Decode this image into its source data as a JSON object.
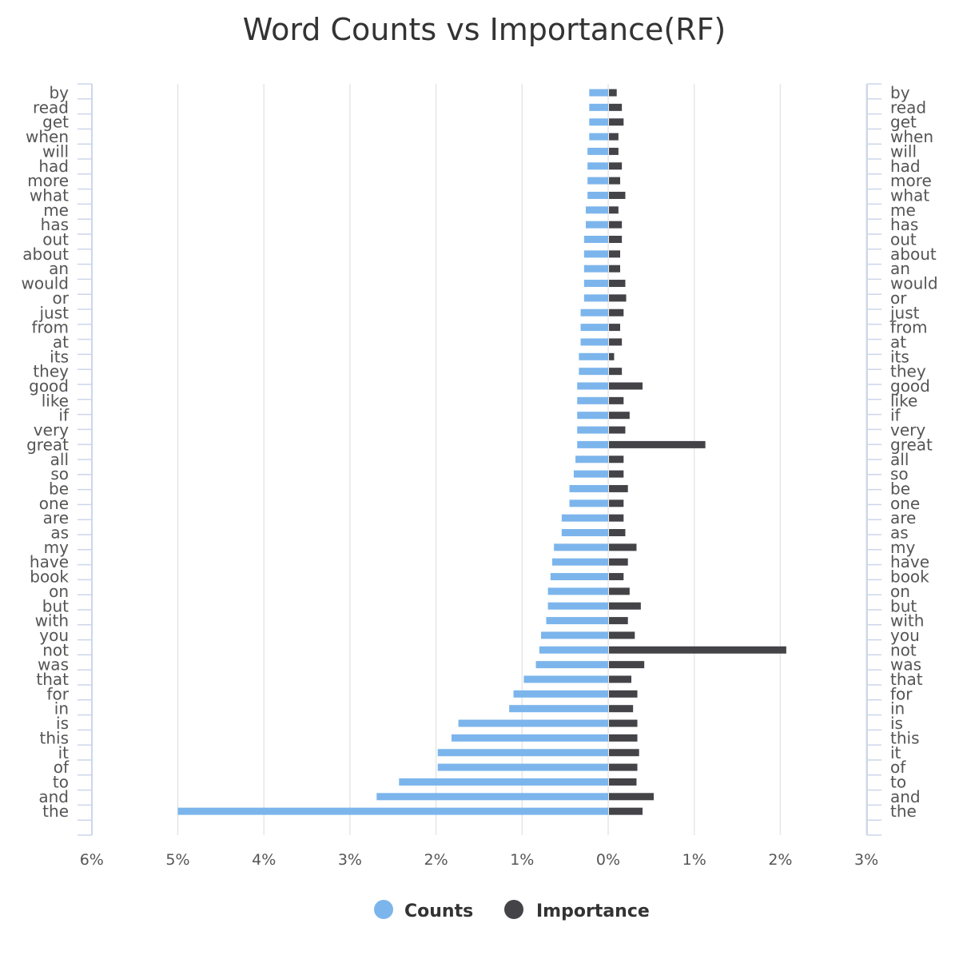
{
  "chart_data": {
    "type": "bar",
    "orientation": "horizontal",
    "title": "Word Counts vs Importance(RF)",
    "categories": [
      "by",
      "read",
      "get",
      "when",
      "will",
      "had",
      "more",
      "what",
      "me",
      "has",
      "out",
      "about",
      "an",
      "would",
      "or",
      "just",
      "from",
      "at",
      "its",
      "they",
      "good",
      "like",
      "if",
      "very",
      "great",
      "all",
      "so",
      "be",
      "one",
      "are",
      "as",
      "my",
      "have",
      "book",
      "on",
      "but",
      "with",
      "you",
      "not",
      "was",
      "that",
      "for",
      "in",
      "is",
      "this",
      "it",
      "of",
      "to",
      "and",
      "the"
    ],
    "series": [
      {
        "name": "Counts",
        "color": "#7cb5ec",
        "direction": "left",
        "values": [
          0.22,
          0.22,
          0.22,
          0.22,
          0.24,
          0.24,
          0.24,
          0.24,
          0.26,
          0.26,
          0.28,
          0.28,
          0.28,
          0.28,
          0.28,
          0.32,
          0.32,
          0.32,
          0.34,
          0.34,
          0.36,
          0.36,
          0.36,
          0.36,
          0.36,
          0.38,
          0.4,
          0.45,
          0.45,
          0.54,
          0.54,
          0.63,
          0.65,
          0.67,
          0.7,
          0.7,
          0.72,
          0.78,
          0.8,
          0.84,
          0.98,
          1.1,
          1.15,
          1.74,
          1.82,
          1.98,
          1.98,
          2.43,
          2.69,
          5.0
        ]
      },
      {
        "name": "Importance",
        "color": "#434348",
        "direction": "right",
        "values": [
          0.09,
          0.15,
          0.17,
          0.11,
          0.11,
          0.15,
          0.13,
          0.19,
          0.11,
          0.15,
          0.15,
          0.13,
          0.13,
          0.19,
          0.2,
          0.17,
          0.13,
          0.15,
          0.06,
          0.15,
          0.39,
          0.17,
          0.24,
          0.19,
          1.12,
          0.17,
          0.17,
          0.22,
          0.17,
          0.17,
          0.19,
          0.32,
          0.22,
          0.17,
          0.24,
          0.37,
          0.22,
          0.3,
          2.06,
          0.41,
          0.26,
          0.33,
          0.28,
          0.33,
          0.33,
          0.35,
          0.33,
          0.32,
          0.52,
          0.39
        ]
      }
    ],
    "left_axis_ticks": [
      "6%",
      "5%",
      "4%",
      "3%",
      "2%",
      "1%",
      "0%"
    ],
    "right_axis_ticks": [
      "1%",
      "2%",
      "3%"
    ],
    "xlim_left": [
      6,
      0
    ],
    "xlim_right": [
      0,
      3
    ],
    "grid": true,
    "legend": {
      "position": "bottom-center",
      "items": [
        {
          "label": "Counts",
          "color": "#7cb5ec"
        },
        {
          "label": "Importance",
          "color": "#434348"
        }
      ]
    }
  }
}
